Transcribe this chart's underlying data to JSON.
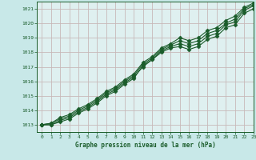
{
  "title": "Graphe pression niveau de la mer (hPa)",
  "background_color": "#c8e8e8",
  "plot_bg_color": "#dff0f0",
  "grid_color": "#c8b8b8",
  "line_color": "#1a5c2a",
  "text_color": "#1a5c2a",
  "xlim": [
    -0.5,
    23
  ],
  "ylim": [
    1012.5,
    1021.5
  ],
  "yticks": [
    1013,
    1014,
    1015,
    1016,
    1017,
    1018,
    1019,
    1020,
    1021
  ],
  "xticks": [
    0,
    1,
    2,
    3,
    4,
    5,
    6,
    7,
    8,
    9,
    10,
    11,
    12,
    13,
    14,
    15,
    16,
    17,
    18,
    19,
    20,
    21,
    22,
    23
  ],
  "series": [
    [
      1013.0,
      1013.0,
      1013.2,
      1013.4,
      1013.8,
      1014.1,
      1014.5,
      1015.0,
      1015.3,
      1015.8,
      1016.2,
      1017.1,
      1017.5,
      1018.0,
      1018.3,
      1018.4,
      1018.2,
      1018.4,
      1018.9,
      1019.1,
      1019.7,
      1019.9,
      1020.7,
      1021.0
    ],
    [
      1013.0,
      1013.0,
      1013.3,
      1013.5,
      1013.9,
      1014.2,
      1014.6,
      1015.1,
      1015.4,
      1015.9,
      1016.3,
      1017.0,
      1017.5,
      1018.1,
      1018.4,
      1018.6,
      1018.4,
      1018.6,
      1019.1,
      1019.3,
      1019.9,
      1020.1,
      1020.9,
      1021.2
    ],
    [
      1013.0,
      1013.1,
      1013.4,
      1013.6,
      1014.0,
      1014.3,
      1014.7,
      1015.2,
      1015.5,
      1016.0,
      1016.4,
      1017.2,
      1017.6,
      1018.2,
      1018.5,
      1018.8,
      1018.6,
      1018.8,
      1019.3,
      1019.5,
      1020.0,
      1020.3,
      1021.0,
      1021.3
    ],
    [
      1013.0,
      1013.1,
      1013.5,
      1013.7,
      1014.1,
      1014.4,
      1014.8,
      1015.3,
      1015.6,
      1016.1,
      1016.5,
      1017.3,
      1017.7,
      1018.3,
      1018.6,
      1019.0,
      1018.8,
      1019.0,
      1019.5,
      1019.7,
      1020.2,
      1020.5,
      1021.1,
      1021.4
    ]
  ],
  "marker": "D",
  "markersize": 2.5,
  "linewidth": 0.8
}
